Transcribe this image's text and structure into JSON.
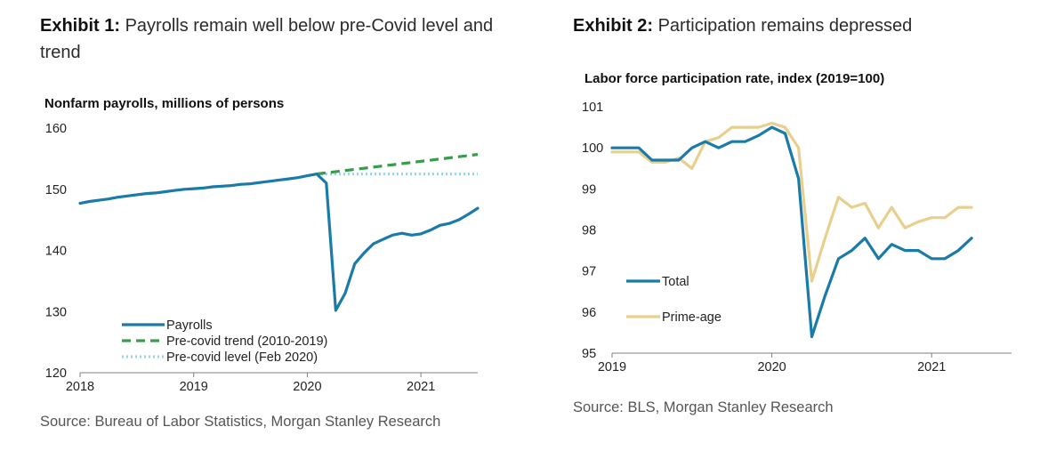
{
  "exhibits": [
    {
      "label": "Exhibit 1:",
      "title": "Payrolls remain well below pre-Covid level and trend",
      "subtitle": "Nonfarm payrolls, millions of persons",
      "source": "Source: Bureau of Labor Statistics, Morgan Stanley Research"
    },
    {
      "label": "Exhibit 2:",
      "title": "Participation remains depressed",
      "subtitle": "Labor force participation rate, index (2019=100)",
      "source": "Source: BLS, Morgan Stanley Research"
    }
  ],
  "colors": {
    "blue": "#1a7ba8",
    "green": "#3a9b4d",
    "lightblue": "#9fd3e6",
    "tan": "#e8cf8e"
  },
  "chart_data": [
    {
      "type": "line",
      "title": "Nonfarm payrolls, millions of persons",
      "xlabel": "",
      "ylabel": "",
      "xlim": [
        2018.0,
        2021.5
      ],
      "ylim": [
        120,
        160
      ],
      "yticks": [
        "120",
        "130",
        "140",
        "150",
        "160"
      ],
      "xticks": [
        {
          "value": 2018,
          "label": "2018"
        },
        {
          "value": 2019,
          "label": "2019"
        },
        {
          "value": 2020,
          "label": "2020"
        },
        {
          "value": 2021,
          "label": "2021"
        }
      ],
      "legend_position": "bottom-center",
      "grid": false,
      "series": [
        {
          "name": "Payrolls",
          "style": "solid",
          "color": "#1a7ba8",
          "x": [
            2018.0,
            2018.083,
            2018.167,
            2018.25,
            2018.333,
            2018.417,
            2018.5,
            2018.583,
            2018.667,
            2018.75,
            2018.833,
            2018.917,
            2019.0,
            2019.083,
            2019.167,
            2019.25,
            2019.333,
            2019.417,
            2019.5,
            2019.583,
            2019.667,
            2019.75,
            2019.833,
            2019.917,
            2020.0,
            2020.083,
            2020.167,
            2020.25,
            2020.333,
            2020.417,
            2020.5,
            2020.583,
            2020.667,
            2020.75,
            2020.833,
            2020.917,
            2021.0,
            2021.083,
            2021.167,
            2021.25,
            2021.333,
            2021.417,
            2021.5
          ],
          "values": [
            147.7,
            148.0,
            148.2,
            148.4,
            148.7,
            148.9,
            149.1,
            149.3,
            149.4,
            149.6,
            149.8,
            150.0,
            150.1,
            150.2,
            150.4,
            150.5,
            150.6,
            150.8,
            150.9,
            151.1,
            151.3,
            151.5,
            151.7,
            151.9,
            152.2,
            152.5,
            151.0,
            130.2,
            133.0,
            137.8,
            139.6,
            141.1,
            141.8,
            142.5,
            142.8,
            142.5,
            142.7,
            143.3,
            144.1,
            144.4,
            145.0,
            145.9,
            146.9
          ]
        },
        {
          "name": "Pre-covid trend (2010-2019)",
          "style": "dashed",
          "color": "#3a9b4d",
          "x": [
            2020.083,
            2021.5
          ],
          "values": [
            152.5,
            155.7
          ]
        },
        {
          "name": "Pre-covid level (Feb 2020)",
          "style": "dotted",
          "color": "#9fd3e6",
          "x": [
            2020.083,
            2021.5
          ],
          "values": [
            152.5,
            152.5
          ]
        }
      ]
    },
    {
      "type": "line",
      "title": "Labor force participation rate, index (2019=100)",
      "xlabel": "",
      "ylabel": "",
      "xlim": [
        2019.0,
        2021.5
      ],
      "ylim": [
        95,
        101
      ],
      "yticks": [
        "95",
        "96",
        "97",
        "98",
        "99",
        "100",
        "101"
      ],
      "xticks": [
        {
          "value": 2019,
          "label": "2019"
        },
        {
          "value": 2020,
          "label": "2020"
        },
        {
          "value": 2021,
          "label": "2021"
        }
      ],
      "legend_position": "bottom-left",
      "grid": false,
      "series": [
        {
          "name": "Total",
          "style": "solid",
          "color": "#1a7ba8",
          "x": [
            2019.0,
            2019.083,
            2019.167,
            2019.25,
            2019.333,
            2019.417,
            2019.5,
            2019.583,
            2019.667,
            2019.75,
            2019.833,
            2019.917,
            2020.0,
            2020.083,
            2020.167,
            2020.25,
            2020.333,
            2020.417,
            2020.5,
            2020.583,
            2020.667,
            2020.75,
            2020.833,
            2020.917,
            2021.0,
            2021.083,
            2021.167,
            2021.25
          ],
          "values": [
            100.0,
            100.0,
            100.0,
            99.7,
            99.7,
            99.7,
            100.0,
            100.15,
            100.0,
            100.15,
            100.15,
            100.3,
            100.5,
            100.35,
            99.25,
            95.4,
            96.4,
            97.3,
            97.5,
            97.8,
            97.3,
            97.65,
            97.5,
            97.5,
            97.3,
            97.3,
            97.5,
            97.8
          ]
        },
        {
          "name": "Prime-age",
          "style": "solid",
          "color": "#e8cf8e",
          "x": [
            2019.0,
            2019.083,
            2019.167,
            2019.25,
            2019.333,
            2019.417,
            2019.5,
            2019.583,
            2019.667,
            2019.75,
            2019.833,
            2019.917,
            2020.0,
            2020.083,
            2020.167,
            2020.25,
            2020.333,
            2020.417,
            2020.5,
            2020.583,
            2020.667,
            2020.75,
            2020.833,
            2020.917,
            2021.0,
            2021.083,
            2021.167,
            2021.25
          ],
          "values": [
            99.9,
            99.9,
            99.9,
            99.65,
            99.65,
            99.75,
            99.5,
            100.15,
            100.25,
            100.5,
            100.5,
            100.5,
            100.6,
            100.5,
            100.0,
            96.75,
            97.8,
            98.8,
            98.55,
            98.65,
            98.05,
            98.55,
            98.05,
            98.2,
            98.3,
            98.3,
            98.55,
            98.55
          ]
        }
      ]
    }
  ]
}
